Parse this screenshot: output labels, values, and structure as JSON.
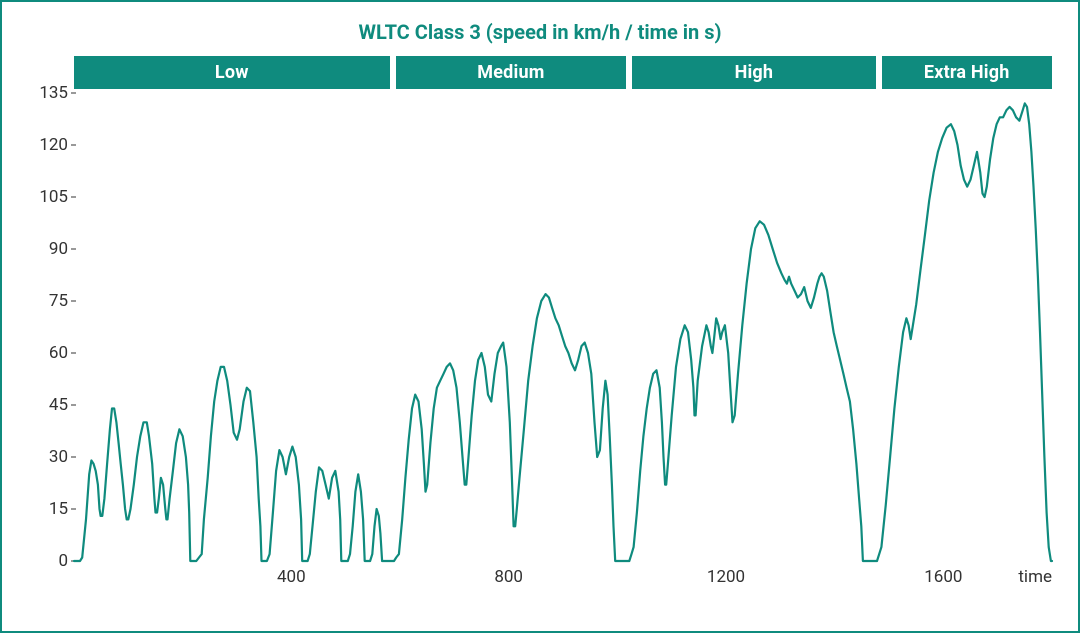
{
  "title": "WLTC Class 3 (speed in km/h / time in s)",
  "colors": {
    "accent": "#0f8b7e",
    "background": "#ffffff",
    "text": "#333333",
    "line": "#0f8b7e"
  },
  "phases": [
    {
      "label": "Low",
      "start": 0,
      "end": 589
    },
    {
      "label": "Medium",
      "start": 589,
      "end": 1022
    },
    {
      "label": "High",
      "start": 1022,
      "end": 1478
    },
    {
      "label": "Extra High",
      "start": 1478,
      "end": 1800
    }
  ],
  "chart": {
    "type": "line",
    "x_label": "time",
    "xlim": [
      0,
      1800
    ],
    "ylim": [
      0,
      135
    ],
    "xticks": [
      400,
      800,
      1200,
      1600
    ],
    "yticks": [
      0,
      15,
      30,
      45,
      60,
      75,
      90,
      105,
      120,
      135
    ],
    "line_color": "#0f8b7e",
    "line_width": 2.2,
    "background_color": "#ffffff",
    "title_fontsize": 20,
    "tick_fontsize": 17,
    "phase_fontsize": 18,
    "series": [
      [
        0,
        0
      ],
      [
        11,
        0
      ],
      [
        15,
        1
      ],
      [
        22,
        12
      ],
      [
        28,
        25
      ],
      [
        32,
        29
      ],
      [
        36,
        28
      ],
      [
        40,
        26
      ],
      [
        44,
        22
      ],
      [
        47,
        15
      ],
      [
        49,
        13
      ],
      [
        52,
        13
      ],
      [
        56,
        18
      ],
      [
        61,
        28
      ],
      [
        66,
        38
      ],
      [
        70,
        44
      ],
      [
        74,
        44
      ],
      [
        78,
        40
      ],
      [
        82,
        34
      ],
      [
        86,
        28
      ],
      [
        90,
        22
      ],
      [
        94,
        15
      ],
      [
        97,
        12
      ],
      [
        100,
        12
      ],
      [
        104,
        15
      ],
      [
        110,
        22
      ],
      [
        116,
        30
      ],
      [
        122,
        36
      ],
      [
        128,
        40
      ],
      [
        134,
        40
      ],
      [
        138,
        36
      ],
      [
        144,
        28
      ],
      [
        148,
        18
      ],
      [
        150,
        14
      ],
      [
        153,
        14
      ],
      [
        156,
        18
      ],
      [
        160,
        24
      ],
      [
        164,
        22
      ],
      [
        168,
        15
      ],
      [
        170,
        12
      ],
      [
        172,
        12
      ],
      [
        176,
        18
      ],
      [
        182,
        26
      ],
      [
        188,
        34
      ],
      [
        194,
        38
      ],
      [
        200,
        36
      ],
      [
        206,
        30
      ],
      [
        210,
        22
      ],
      [
        212,
        14
      ],
      [
        214,
        0
      ],
      [
        225,
        0
      ],
      [
        230,
        1
      ],
      [
        235,
        2
      ],
      [
        239,
        12
      ],
      [
        246,
        24
      ],
      [
        252,
        36
      ],
      [
        258,
        46
      ],
      [
        264,
        52
      ],
      [
        270,
        56
      ],
      [
        276,
        56
      ],
      [
        282,
        52
      ],
      [
        288,
        45
      ],
      [
        294,
        37
      ],
      [
        300,
        35
      ],
      [
        305,
        38
      ],
      [
        312,
        46
      ],
      [
        318,
        50
      ],
      [
        324,
        49
      ],
      [
        330,
        40
      ],
      [
        336,
        30
      ],
      [
        340,
        18
      ],
      [
        343,
        10
      ],
      [
        345,
        0
      ],
      [
        355,
        0
      ],
      [
        360,
        2
      ],
      [
        366,
        14
      ],
      [
        372,
        26
      ],
      [
        378,
        32
      ],
      [
        384,
        30
      ],
      [
        390,
        25
      ],
      [
        396,
        30
      ],
      [
        402,
        33
      ],
      [
        408,
        30
      ],
      [
        414,
        22
      ],
      [
        418,
        12
      ],
      [
        420,
        0
      ],
      [
        430,
        0
      ],
      [
        434,
        2
      ],
      [
        439,
        10
      ],
      [
        445,
        20
      ],
      [
        451,
        27
      ],
      [
        457,
        26
      ],
      [
        463,
        22
      ],
      [
        469,
        18
      ],
      [
        475,
        24
      ],
      [
        481,
        26
      ],
      [
        487,
        20
      ],
      [
        490,
        12
      ],
      [
        492,
        0
      ],
      [
        504,
        0
      ],
      [
        508,
        2
      ],
      [
        513,
        10
      ],
      [
        518,
        20
      ],
      [
        523,
        25
      ],
      [
        528,
        20
      ],
      [
        532,
        12
      ],
      [
        535,
        0
      ],
      [
        545,
        0
      ],
      [
        549,
        2
      ],
      [
        553,
        10
      ],
      [
        557,
        15
      ],
      [
        561,
        13
      ],
      [
        564,
        8
      ],
      [
        567,
        0
      ],
      [
        589,
        0
      ],
      [
        593,
        1
      ],
      [
        598,
        2
      ],
      [
        604,
        12
      ],
      [
        610,
        24
      ],
      [
        616,
        35
      ],
      [
        622,
        44
      ],
      [
        628,
        48
      ],
      [
        634,
        46
      ],
      [
        640,
        38
      ],
      [
        644,
        28
      ],
      [
        647,
        20
      ],
      [
        650,
        22
      ],
      [
        656,
        34
      ],
      [
        662,
        44
      ],
      [
        668,
        50
      ],
      [
        674,
        52
      ],
      [
        680,
        54
      ],
      [
        686,
        56
      ],
      [
        692,
        57
      ],
      [
        698,
        55
      ],
      [
        704,
        50
      ],
      [
        710,
        40
      ],
      [
        715,
        30
      ],
      [
        719,
        22
      ],
      [
        722,
        22
      ],
      [
        726,
        30
      ],
      [
        732,
        42
      ],
      [
        738,
        52
      ],
      [
        744,
        58
      ],
      [
        750,
        60
      ],
      [
        756,
        56
      ],
      [
        762,
        48
      ],
      [
        768,
        46
      ],
      [
        774,
        54
      ],
      [
        780,
        60
      ],
      [
        786,
        62
      ],
      [
        790,
        63
      ],
      [
        796,
        56
      ],
      [
        802,
        40
      ],
      [
        806,
        24
      ],
      [
        809,
        10
      ],
      [
        812,
        10
      ],
      [
        815,
        15
      ],
      [
        820,
        24
      ],
      [
        828,
        38
      ],
      [
        836,
        52
      ],
      [
        844,
        62
      ],
      [
        852,
        70
      ],
      [
        860,
        75
      ],
      [
        868,
        77
      ],
      [
        874,
        76
      ],
      [
        880,
        73
      ],
      [
        886,
        70
      ],
      [
        892,
        68
      ],
      [
        898,
        65
      ],
      [
        904,
        62
      ],
      [
        910,
        60
      ],
      [
        916,
        57
      ],
      [
        922,
        55
      ],
      [
        928,
        58
      ],
      [
        934,
        62
      ],
      [
        940,
        63
      ],
      [
        946,
        60
      ],
      [
        952,
        54
      ],
      [
        958,
        40
      ],
      [
        963,
        30
      ],
      [
        968,
        32
      ],
      [
        973,
        44
      ],
      [
        978,
        52
      ],
      [
        982,
        48
      ],
      [
        986,
        36
      ],
      [
        990,
        22
      ],
      [
        993,
        10
      ],
      [
        996,
        0
      ],
      [
        1022,
        0
      ],
      [
        1026,
        2
      ],
      [
        1030,
        4
      ],
      [
        1036,
        14
      ],
      [
        1042,
        26
      ],
      [
        1048,
        36
      ],
      [
        1054,
        44
      ],
      [
        1060,
        50
      ],
      [
        1066,
        54
      ],
      [
        1072,
        55
      ],
      [
        1078,
        50
      ],
      [
        1082,
        40
      ],
      [
        1085,
        30
      ],
      [
        1088,
        22
      ],
      [
        1090,
        22
      ],
      [
        1093,
        28
      ],
      [
        1100,
        42
      ],
      [
        1108,
        56
      ],
      [
        1116,
        64
      ],
      [
        1124,
        68
      ],
      [
        1130,
        66
      ],
      [
        1136,
        58
      ],
      [
        1140,
        50
      ],
      [
        1142,
        42
      ],
      [
        1144,
        42
      ],
      [
        1148,
        52
      ],
      [
        1156,
        62
      ],
      [
        1164,
        68
      ],
      [
        1168,
        66
      ],
      [
        1172,
        62
      ],
      [
        1175,
        60
      ],
      [
        1178,
        64
      ],
      [
        1182,
        70
      ],
      [
        1186,
        68
      ],
      [
        1190,
        64
      ],
      [
        1193,
        66
      ],
      [
        1198,
        68
      ],
      [
        1204,
        60
      ],
      [
        1208,
        50
      ],
      [
        1212,
        40
      ],
      [
        1216,
        42
      ],
      [
        1222,
        54
      ],
      [
        1230,
        68
      ],
      [
        1238,
        80
      ],
      [
        1246,
        90
      ],
      [
        1254,
        96
      ],
      [
        1262,
        98
      ],
      [
        1270,
        97
      ],
      [
        1278,
        94
      ],
      [
        1286,
        90
      ],
      [
        1294,
        86
      ],
      [
        1302,
        83
      ],
      [
        1308,
        81
      ],
      [
        1312,
        80
      ],
      [
        1316,
        82
      ],
      [
        1320,
        80
      ],
      [
        1326,
        78
      ],
      [
        1332,
        76
      ],
      [
        1338,
        77
      ],
      [
        1344,
        79
      ],
      [
        1350,
        75
      ],
      [
        1356,
        73
      ],
      [
        1362,
        76
      ],
      [
        1368,
        80
      ],
      [
        1372,
        82
      ],
      [
        1376,
        83
      ],
      [
        1380,
        82
      ],
      [
        1386,
        78
      ],
      [
        1392,
        72
      ],
      [
        1398,
        66
      ],
      [
        1404,
        62
      ],
      [
        1410,
        58
      ],
      [
        1416,
        54
      ],
      [
        1422,
        50
      ],
      [
        1428,
        46
      ],
      [
        1434,
        38
      ],
      [
        1440,
        28
      ],
      [
        1445,
        18
      ],
      [
        1449,
        10
      ],
      [
        1452,
        0
      ],
      [
        1478,
        0
      ],
      [
        1482,
        2
      ],
      [
        1486,
        4
      ],
      [
        1494,
        16
      ],
      [
        1502,
        30
      ],
      [
        1510,
        44
      ],
      [
        1518,
        56
      ],
      [
        1526,
        66
      ],
      [
        1532,
        70
      ],
      [
        1536,
        68
      ],
      [
        1540,
        64
      ],
      [
        1544,
        68
      ],
      [
        1550,
        74
      ],
      [
        1558,
        84
      ],
      [
        1566,
        94
      ],
      [
        1574,
        104
      ],
      [
        1582,
        112
      ],
      [
        1590,
        118
      ],
      [
        1598,
        122
      ],
      [
        1606,
        125
      ],
      [
        1614,
        126
      ],
      [
        1620,
        124
      ],
      [
        1626,
        120
      ],
      [
        1632,
        114
      ],
      [
        1638,
        110
      ],
      [
        1644,
        108
      ],
      [
        1650,
        110
      ],
      [
        1656,
        114
      ],
      [
        1662,
        118
      ],
      [
        1668,
        112
      ],
      [
        1672,
        106
      ],
      [
        1676,
        105
      ],
      [
        1680,
        108
      ],
      [
        1686,
        116
      ],
      [
        1692,
        122
      ],
      [
        1698,
        126
      ],
      [
        1704,
        128
      ],
      [
        1710,
        128
      ],
      [
        1716,
        130
      ],
      [
        1722,
        131
      ],
      [
        1728,
        130
      ],
      [
        1734,
        128
      ],
      [
        1740,
        127
      ],
      [
        1746,
        130
      ],
      [
        1750,
        132
      ],
      [
        1754,
        131
      ],
      [
        1758,
        126
      ],
      [
        1762,
        118
      ],
      [
        1766,
        108
      ],
      [
        1770,
        96
      ],
      [
        1774,
        82
      ],
      [
        1778,
        66
      ],
      [
        1782,
        48
      ],
      [
        1786,
        30
      ],
      [
        1790,
        14
      ],
      [
        1794,
        4
      ],
      [
        1798,
        0
      ],
      [
        1800,
        0
      ]
    ]
  }
}
